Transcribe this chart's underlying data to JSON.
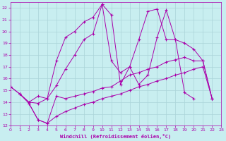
{
  "xlabel": "Windchill (Refroidissement éolien,°C)",
  "bg_color": "#c8eef0",
  "grid_color": "#aad4d8",
  "line_color": "#aa00aa",
  "xlim": [
    0,
    23
  ],
  "ylim": [
    12,
    22.5
  ],
  "xticks": [
    0,
    1,
    2,
    3,
    4,
    5,
    6,
    7,
    8,
    9,
    10,
    11,
    12,
    13,
    14,
    15,
    16,
    17,
    18,
    19,
    20,
    21,
    22,
    23
  ],
  "yticks": [
    12,
    13,
    14,
    15,
    16,
    17,
    18,
    19,
    20,
    21,
    22
  ],
  "series": [
    [
      [
        0,
        15.3
      ],
      [
        1,
        14.7
      ],
      [
        2,
        14.0
      ],
      [
        3,
        13.9
      ],
      [
        4,
        14.3
      ],
      [
        5,
        15.4
      ],
      [
        6,
        16.8
      ],
      [
        7,
        18.0
      ],
      [
        8,
        19.3
      ],
      [
        9,
        19.8
      ],
      [
        10,
        22.3
      ],
      [
        11,
        21.4
      ],
      [
        12,
        15.5
      ],
      [
        13,
        17.0
      ],
      [
        14,
        15.5
      ],
      [
        15,
        16.3
      ],
      [
        16,
        19.5
      ],
      [
        17,
        21.8
      ],
      [
        18,
        19.3
      ],
      [
        19,
        14.8
      ],
      [
        20,
        14.3
      ]
    ],
    [
      [
        1,
        14.7
      ],
      [
        2,
        13.9
      ],
      [
        3,
        12.5
      ],
      [
        4,
        12.2
      ],
      [
        5,
        14.5
      ],
      [
        6,
        14.3
      ],
      [
        7,
        14.5
      ],
      [
        8,
        14.7
      ],
      [
        9,
        14.9
      ],
      [
        10,
        15.2
      ],
      [
        11,
        15.3
      ],
      [
        12,
        15.8
      ],
      [
        13,
        16.3
      ],
      [
        14,
        16.5
      ],
      [
        15,
        16.8
      ],
      [
        16,
        17.0
      ],
      [
        17,
        17.4
      ],
      [
        18,
        17.6
      ],
      [
        19,
        17.8
      ],
      [
        20,
        17.5
      ],
      [
        21,
        17.5
      ],
      [
        22,
        14.3
      ]
    ],
    [
      [
        2,
        13.9
      ],
      [
        3,
        12.5
      ],
      [
        4,
        12.2
      ],
      [
        5,
        12.8
      ],
      [
        6,
        13.2
      ],
      [
        7,
        13.5
      ],
      [
        8,
        13.8
      ],
      [
        9,
        14.0
      ],
      [
        10,
        14.3
      ],
      [
        11,
        14.5
      ],
      [
        12,
        14.7
      ],
      [
        13,
        15.0
      ],
      [
        14,
        15.3
      ],
      [
        15,
        15.5
      ],
      [
        16,
        15.8
      ],
      [
        17,
        16.0
      ],
      [
        18,
        16.3
      ],
      [
        19,
        16.5
      ],
      [
        20,
        16.8
      ],
      [
        21,
        17.0
      ],
      [
        22,
        14.3
      ]
    ],
    [
      [
        0,
        15.3
      ],
      [
        1,
        14.7
      ],
      [
        2,
        14.0
      ],
      [
        3,
        14.5
      ],
      [
        4,
        14.3
      ],
      [
        5,
        17.5
      ],
      [
        6,
        19.5
      ],
      [
        7,
        20.0
      ],
      [
        8,
        20.8
      ],
      [
        9,
        21.2
      ],
      [
        10,
        22.3
      ],
      [
        11,
        17.5
      ],
      [
        12,
        16.5
      ],
      [
        13,
        17.0
      ],
      [
        14,
        19.3
      ],
      [
        15,
        21.7
      ],
      [
        16,
        21.9
      ],
      [
        17,
        19.3
      ],
      [
        18,
        19.3
      ],
      [
        19,
        19.0
      ],
      [
        20,
        18.5
      ],
      [
        21,
        17.5
      ],
      [
        22,
        14.3
      ]
    ]
  ]
}
